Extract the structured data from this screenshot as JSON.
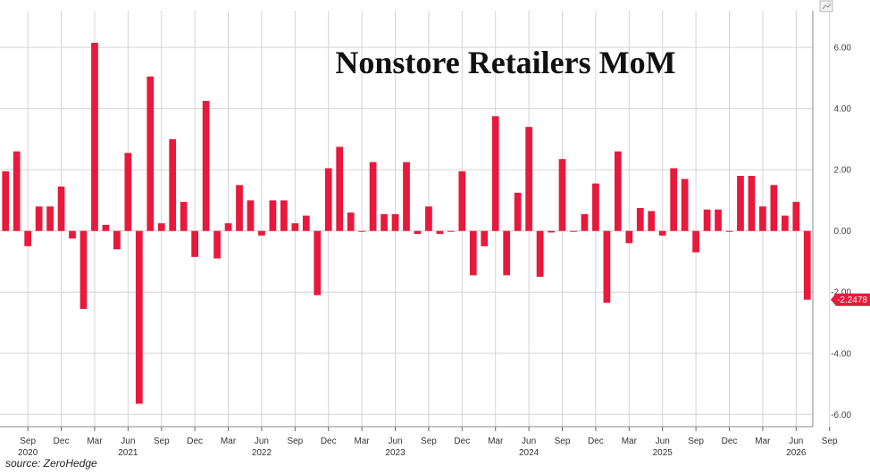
{
  "chart_data": {
    "type": "bar",
    "title": "Nonstore Retailers MoM",
    "source": "source: ZeroHedge",
    "bar_color": "#e8193c",
    "last_value_label": "-2.2478",
    "ylim": [
      -6.4,
      7.2
    ],
    "y_ticks": [
      {
        "value": 6,
        "label": "6.00"
      },
      {
        "value": 4,
        "label": "4.00"
      },
      {
        "value": 2,
        "label": "2.00"
      },
      {
        "value": 0,
        "label": "0.00"
      },
      {
        "value": -2,
        "label": "-2.00"
      },
      {
        "value": -4,
        "label": "-4.00"
      },
      {
        "value": -6,
        "label": "-6.00"
      }
    ],
    "x_month_labels": [
      {
        "index": 2,
        "label": "Sep"
      },
      {
        "index": 5,
        "label": "Dec"
      },
      {
        "index": 8,
        "label": "Mar"
      },
      {
        "index": 11,
        "label": "Jun"
      },
      {
        "index": 14,
        "label": "Sep"
      },
      {
        "index": 17,
        "label": "Dec"
      },
      {
        "index": 20,
        "label": "Mar"
      },
      {
        "index": 23,
        "label": "Jun"
      },
      {
        "index": 26,
        "label": "Sep"
      },
      {
        "index": 29,
        "label": "Dec"
      },
      {
        "index": 32,
        "label": "Mar"
      },
      {
        "index": 35,
        "label": "Jun"
      },
      {
        "index": 38,
        "label": "Sep"
      },
      {
        "index": 41,
        "label": "Dec"
      },
      {
        "index": 44,
        "label": "Mar"
      },
      {
        "index": 47,
        "label": "Jun"
      },
      {
        "index": 50,
        "label": "Sep"
      },
      {
        "index": 53,
        "label": "Dec"
      },
      {
        "index": 56,
        "label": "Mar"
      },
      {
        "index": 59,
        "label": "Jun"
      },
      {
        "index": 62,
        "label": "Sep"
      },
      {
        "index": 65,
        "label": "Dec"
      },
      {
        "index": 68,
        "label": "Mar"
      },
      {
        "index": 71,
        "label": "Jun"
      },
      {
        "index": 74,
        "label": "Sep"
      }
    ],
    "x_year_labels": [
      {
        "index": 2,
        "label": "2020"
      },
      {
        "index": 11,
        "label": "2021"
      },
      {
        "index": 23,
        "label": "2022"
      },
      {
        "index": 35,
        "label": "2023"
      },
      {
        "index": 47,
        "label": "2024"
      },
      {
        "index": 59,
        "label": "2025"
      },
      {
        "index": 71,
        "label": "2026"
      }
    ],
    "values": [
      1.95,
      2.6,
      -0.5,
      0.8,
      0.8,
      1.45,
      -0.25,
      -2.55,
      6.15,
      0.2,
      -0.6,
      2.55,
      -5.65,
      5.05,
      0.25,
      3.0,
      0.95,
      -0.85,
      4.25,
      -0.9,
      0.25,
      1.5,
      1.0,
      -0.15,
      1.0,
      1.0,
      0.25,
      0.5,
      -2.1,
      2.05,
      2.75,
      0.6,
      0.0,
      2.25,
      0.55,
      0.55,
      2.25,
      -0.1,
      0.8,
      -0.1,
      0.0,
      1.95,
      -1.45,
      -0.5,
      3.75,
      -1.45,
      1.25,
      3.4,
      -1.5,
      -0.05,
      2.35,
      0.0,
      0.55,
      1.55,
      -2.35,
      2.6,
      -0.4,
      0.75,
      0.65,
      -0.15,
      2.05,
      1.7,
      -0.7,
      0.7,
      0.7,
      0.0,
      1.8,
      1.8,
      0.8,
      1.5,
      0.5,
      0.95,
      -2.2478
    ]
  }
}
